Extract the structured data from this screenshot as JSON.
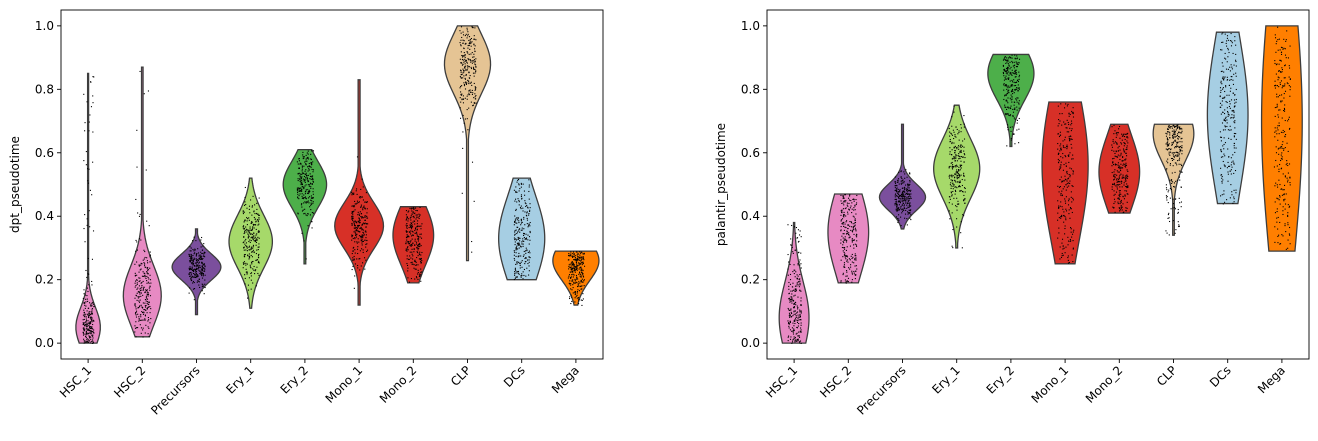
{
  "chart_data": [
    {
      "type": "violin",
      "ylabel": "dpt_pseudotime",
      "ylim": [
        -0.05,
        1.05
      ],
      "yticks": [
        "0.0",
        "0.2",
        "0.4",
        "0.6",
        "0.8",
        "1.0"
      ],
      "categories": [
        "HSC_1",
        "HSC_2",
        "Precursors",
        "Ery_1",
        "Ery_2",
        "Mono_1",
        "Mono_2",
        "CLP",
        "DCs",
        "Mega"
      ],
      "colors": [
        "#e78ac3",
        "#e78ac3",
        "#7b4f9d",
        "#a6d96a",
        "#4daf4a",
        "#d73027",
        "#d73027",
        "#e5c494",
        "#a6cee3",
        "#ff7f00"
      ],
      "series": [
        {
          "min": 0.0,
          "max": 0.85,
          "median": 0.05,
          "q1": 0.03,
          "q3": 0.09,
          "width": 0.45
        },
        {
          "min": 0.02,
          "max": 0.87,
          "median": 0.15,
          "q1": 0.11,
          "q3": 0.2,
          "width": 0.7
        },
        {
          "min": 0.09,
          "max": 0.36,
          "median": 0.24,
          "q1": 0.22,
          "q3": 0.26,
          "width": 0.9
        },
        {
          "min": 0.11,
          "max": 0.52,
          "median": 0.32,
          "q1": 0.28,
          "q3": 0.36,
          "width": 0.8
        },
        {
          "min": 0.25,
          "max": 0.61,
          "median": 0.5,
          "q1": 0.46,
          "q3": 0.53,
          "width": 0.8
        },
        {
          "min": 0.12,
          "max": 0.83,
          "median": 0.37,
          "q1": 0.32,
          "q3": 0.39,
          "width": 0.9
        },
        {
          "min": 0.19,
          "max": 0.43,
          "median": 0.34,
          "q1": 0.29,
          "q3": 0.38,
          "width": 0.75
        },
        {
          "min": 0.26,
          "max": 1.0,
          "median": 0.88,
          "q1": 0.84,
          "q3": 0.93,
          "width": 0.85
        },
        {
          "min": 0.2,
          "max": 0.52,
          "median": 0.33,
          "q1": 0.27,
          "q3": 0.4,
          "width": 0.85
        },
        {
          "min": 0.12,
          "max": 0.29,
          "median": 0.26,
          "q1": 0.22,
          "q3": 0.28,
          "width": 0.85
        }
      ]
    },
    {
      "type": "violin",
      "ylabel": "palantir_pseudotime",
      "ylim": [
        -0.05,
        1.05
      ],
      "yticks": [
        "0.0",
        "0.2",
        "0.4",
        "0.6",
        "0.8",
        "1.0"
      ],
      "categories": [
        "HSC_1",
        "HSC_2",
        "Precursors",
        "Ery_1",
        "Ery_2",
        "Mono_1",
        "Mono_2",
        "CLP",
        "DCs",
        "Mega"
      ],
      "colors": [
        "#e78ac3",
        "#e78ac3",
        "#7b4f9d",
        "#a6d96a",
        "#4daf4a",
        "#d73027",
        "#d73027",
        "#e5c494",
        "#a6cee3",
        "#ff7f00"
      ],
      "series": [
        {
          "min": 0.0,
          "max": 0.38,
          "median": 0.08,
          "q1": 0.04,
          "q3": 0.15,
          "width": 0.55
        },
        {
          "min": 0.19,
          "max": 0.47,
          "median": 0.35,
          "q1": 0.27,
          "q3": 0.4,
          "width": 0.75
        },
        {
          "min": 0.36,
          "max": 0.69,
          "median": 0.46,
          "q1": 0.44,
          "q3": 0.48,
          "width": 0.85
        },
        {
          "min": 0.3,
          "max": 0.75,
          "median": 0.55,
          "q1": 0.5,
          "q3": 0.59,
          "width": 0.85
        },
        {
          "min": 0.62,
          "max": 0.91,
          "median": 0.85,
          "q1": 0.8,
          "q3": 0.88,
          "width": 0.85
        },
        {
          "min": 0.25,
          "max": 0.76,
          "median": 0.56,
          "q1": 0.45,
          "q3": 0.68,
          "width": 0.85
        },
        {
          "min": 0.41,
          "max": 0.69,
          "median": 0.54,
          "q1": 0.48,
          "q3": 0.59,
          "width": 0.75
        },
        {
          "min": 0.34,
          "max": 0.69,
          "median": 0.66,
          "q1": 0.6,
          "q3": 0.68,
          "width": 0.75
        },
        {
          "min": 0.44,
          "max": 0.98,
          "median": 0.72,
          "q1": 0.62,
          "q3": 0.85,
          "width": 0.75
        },
        {
          "min": 0.29,
          "max": 1.0,
          "median": 0.7,
          "q1": 0.5,
          "q3": 0.92,
          "width": 0.75
        }
      ]
    }
  ]
}
